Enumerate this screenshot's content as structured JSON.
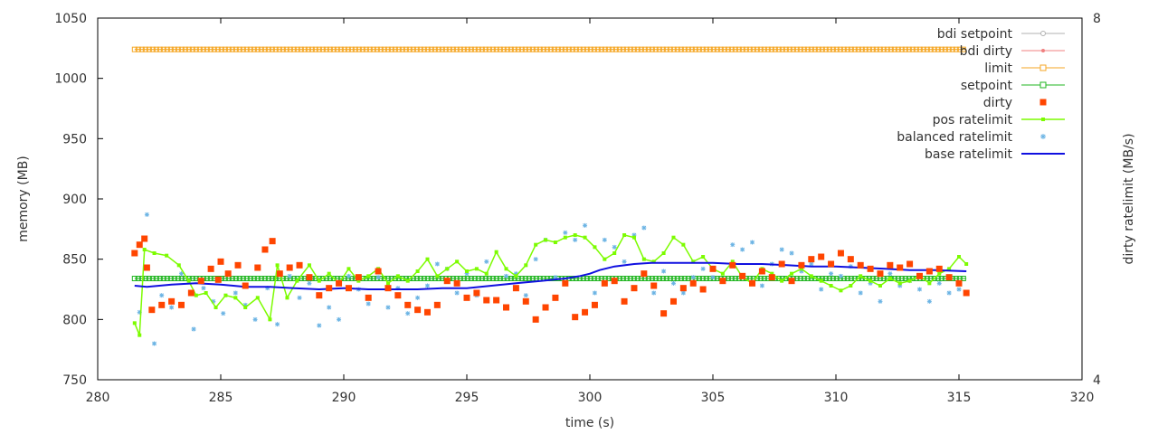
{
  "chart_data": {
    "type": "scatter",
    "title": "",
    "xlabel": "time (s)",
    "ylabel": "memory (MB)",
    "y2label": "dirty ratelimit (MB/s)",
    "xlim": [
      280,
      320
    ],
    "ylim": [
      750,
      1050
    ],
    "y2lim": [
      4,
      8
    ],
    "xticks": [
      "280",
      "285",
      "290",
      "295",
      "300",
      "305",
      "310",
      "315",
      "320"
    ],
    "yticks": [
      "750",
      "800",
      "850",
      "900",
      "950",
      "1000",
      "1050"
    ],
    "y2ticks": [
      "4",
      "8"
    ],
    "grid": false,
    "legend_position": "top-right",
    "series": [
      {
        "name": "bdi setpoint",
        "color": "#b0b0b0",
        "style": "line-circle"
      },
      {
        "name": "bdi dirty",
        "color": "#f08080",
        "style": "line-dot"
      },
      {
        "name": "limit",
        "color": "#f5a623",
        "style": "line-square",
        "value": 1024,
        "x_start": 281.5,
        "x_end": 315.3
      },
      {
        "name": "setpoint",
        "color": "#1fb51f",
        "style": "line-square",
        "value": 834,
        "x_start": 281.5,
        "x_end": 315.3
      },
      {
        "name": "dirty",
        "color": "#ff4500",
        "style": "points-square",
        "points": [
          [
            281.5,
            855
          ],
          [
            281.7,
            862
          ],
          [
            281.9,
            867
          ],
          [
            282.0,
            843
          ],
          [
            282.2,
            808
          ],
          [
            282.6,
            812
          ],
          [
            283.0,
            815
          ],
          [
            283.4,
            812
          ],
          [
            283.8,
            822
          ],
          [
            284.2,
            832
          ],
          [
            284.6,
            842
          ],
          [
            285.0,
            848
          ],
          [
            284.9,
            833
          ],
          [
            285.3,
            838
          ],
          [
            285.7,
            845
          ],
          [
            286.0,
            828
          ],
          [
            286.5,
            843
          ],
          [
            286.8,
            858
          ],
          [
            287.1,
            865
          ],
          [
            287.4,
            838
          ],
          [
            287.8,
            843
          ],
          [
            288.2,
            845
          ],
          [
            288.6,
            835
          ],
          [
            289.0,
            820
          ],
          [
            289.4,
            826
          ],
          [
            289.8,
            830
          ],
          [
            290.2,
            826
          ],
          [
            290.6,
            835
          ],
          [
            291.0,
            818
          ],
          [
            291.4,
            840
          ],
          [
            291.8,
            826
          ],
          [
            292.2,
            820
          ],
          [
            292.6,
            812
          ],
          [
            293.0,
            808
          ],
          [
            293.4,
            806
          ],
          [
            293.8,
            812
          ],
          [
            294.2,
            832
          ],
          [
            294.6,
            830
          ],
          [
            295.0,
            818
          ],
          [
            295.4,
            822
          ],
          [
            295.8,
            816
          ],
          [
            296.2,
            816
          ],
          [
            296.6,
            810
          ],
          [
            297.0,
            826
          ],
          [
            297.4,
            815
          ],
          [
            297.8,
            800
          ],
          [
            298.2,
            810
          ],
          [
            298.6,
            818
          ],
          [
            299.0,
            830
          ],
          [
            299.4,
            802
          ],
          [
            299.8,
            806
          ],
          [
            300.2,
            812
          ],
          [
            300.6,
            830
          ],
          [
            301.0,
            832
          ],
          [
            301.4,
            815
          ],
          [
            301.8,
            826
          ],
          [
            302.2,
            838
          ],
          [
            302.6,
            828
          ],
          [
            303.0,
            805
          ],
          [
            303.4,
            815
          ],
          [
            303.8,
            826
          ],
          [
            304.2,
            830
          ],
          [
            304.6,
            825
          ],
          [
            305.0,
            842
          ],
          [
            305.4,
            832
          ],
          [
            305.8,
            845
          ],
          [
            306.2,
            836
          ],
          [
            306.6,
            830
          ],
          [
            307.0,
            840
          ],
          [
            307.4,
            835
          ],
          [
            307.8,
            846
          ],
          [
            308.2,
            832
          ],
          [
            308.6,
            845
          ],
          [
            309.0,
            850
          ],
          [
            309.4,
            852
          ],
          [
            309.8,
            846
          ],
          [
            310.2,
            855
          ],
          [
            310.6,
            850
          ],
          [
            311.0,
            845
          ],
          [
            311.4,
            842
          ],
          [
            311.8,
            838
          ],
          [
            312.2,
            845
          ],
          [
            312.6,
            843
          ],
          [
            313.0,
            846
          ],
          [
            313.4,
            836
          ],
          [
            313.8,
            840
          ],
          [
            314.2,
            842
          ],
          [
            314.6,
            835
          ],
          [
            315.0,
            830
          ],
          [
            315.3,
            822
          ]
        ]
      },
      {
        "name": "pos ratelimit",
        "color": "#7cfc00",
        "style": "line-point",
        "points": [
          [
            281.5,
            797
          ],
          [
            281.7,
            787
          ],
          [
            281.9,
            858
          ],
          [
            282.3,
            855
          ],
          [
            282.8,
            853
          ],
          [
            283.3,
            845
          ],
          [
            283.7,
            832
          ],
          [
            284.0,
            820
          ],
          [
            284.4,
            822
          ],
          [
            284.8,
            810
          ],
          [
            285.2,
            820
          ],
          [
            285.6,
            818
          ],
          [
            286.0,
            810
          ],
          [
            286.5,
            818
          ],
          [
            287.0,
            800
          ],
          [
            287.3,
            845
          ],
          [
            287.7,
            818
          ],
          [
            288.1,
            832
          ],
          [
            288.6,
            845
          ],
          [
            289.0,
            832
          ],
          [
            289.4,
            838
          ],
          [
            289.8,
            830
          ],
          [
            290.2,
            842
          ],
          [
            290.6,
            832
          ],
          [
            291.0,
            836
          ],
          [
            291.4,
            842
          ],
          [
            291.8,
            830
          ],
          [
            292.2,
            836
          ],
          [
            292.6,
            832
          ],
          [
            293.0,
            840
          ],
          [
            293.4,
            850
          ],
          [
            293.8,
            836
          ],
          [
            294.2,
            842
          ],
          [
            294.6,
            848
          ],
          [
            295.0,
            840
          ],
          [
            295.4,
            842
          ],
          [
            295.8,
            838
          ],
          [
            296.2,
            856
          ],
          [
            296.6,
            842
          ],
          [
            297.0,
            836
          ],
          [
            297.4,
            845
          ],
          [
            297.8,
            862
          ],
          [
            298.2,
            866
          ],
          [
            298.6,
            864
          ],
          [
            299.0,
            868
          ],
          [
            299.4,
            870
          ],
          [
            299.8,
            868
          ],
          [
            300.2,
            860
          ],
          [
            300.6,
            850
          ],
          [
            301.0,
            855
          ],
          [
            301.4,
            870
          ],
          [
            301.8,
            868
          ],
          [
            302.2,
            850
          ],
          [
            302.6,
            848
          ],
          [
            303.0,
            855
          ],
          [
            303.4,
            868
          ],
          [
            303.8,
            862
          ],
          [
            304.2,
            848
          ],
          [
            304.6,
            852
          ],
          [
            305.0,
            842
          ],
          [
            305.4,
            838
          ],
          [
            305.8,
            848
          ],
          [
            306.2,
            835
          ],
          [
            306.6,
            830
          ],
          [
            307.0,
            842
          ],
          [
            307.4,
            838
          ],
          [
            307.8,
            832
          ],
          [
            308.2,
            838
          ],
          [
            308.6,
            842
          ],
          [
            309.0,
            836
          ],
          [
            309.4,
            832
          ],
          [
            309.8,
            828
          ],
          [
            310.2,
            824
          ],
          [
            310.6,
            828
          ],
          [
            311.0,
            836
          ],
          [
            311.4,
            832
          ],
          [
            311.8,
            828
          ],
          [
            312.2,
            834
          ],
          [
            312.6,
            830
          ],
          [
            313.0,
            832
          ],
          [
            313.4,
            836
          ],
          [
            313.8,
            830
          ],
          [
            314.2,
            838
          ],
          [
            314.6,
            842
          ],
          [
            315.0,
            852
          ],
          [
            315.3,
            846
          ]
        ]
      },
      {
        "name": "balanced ratelimit",
        "color": "#6cb4e4",
        "style": "points-star",
        "points": [
          [
            281.7,
            806
          ],
          [
            282.0,
            887
          ],
          [
            282.3,
            780
          ],
          [
            282.6,
            820
          ],
          [
            283.0,
            810
          ],
          [
            283.4,
            838
          ],
          [
            283.9,
            792
          ],
          [
            284.3,
            826
          ],
          [
            284.7,
            815
          ],
          [
            285.1,
            805
          ],
          [
            285.6,
            822
          ],
          [
            286.0,
            812
          ],
          [
            286.4,
            800
          ],
          [
            286.9,
            826
          ],
          [
            287.3,
            796
          ],
          [
            287.8,
            836
          ],
          [
            288.2,
            818
          ],
          [
            288.6,
            830
          ],
          [
            289.0,
            795
          ],
          [
            289.4,
            810
          ],
          [
            289.8,
            800
          ],
          [
            290.2,
            836
          ],
          [
            290.6,
            825
          ],
          [
            291.0,
            813
          ],
          [
            291.4,
            835
          ],
          [
            291.8,
            810
          ],
          [
            292.2,
            826
          ],
          [
            292.6,
            805
          ],
          [
            293.0,
            818
          ],
          [
            293.4,
            828
          ],
          [
            293.8,
            846
          ],
          [
            294.2,
            842
          ],
          [
            294.6,
            822
          ],
          [
            295.0,
            838
          ],
          [
            295.4,
            820
          ],
          [
            295.8,
            848
          ],
          [
            296.2,
            816
          ],
          [
            296.6,
            836
          ],
          [
            297.0,
            838
          ],
          [
            297.4,
            820
          ],
          [
            297.8,
            850
          ],
          [
            298.2,
            866
          ],
          [
            298.6,
            835
          ],
          [
            299.0,
            872
          ],
          [
            299.4,
            866
          ],
          [
            299.8,
            878
          ],
          [
            300.2,
            822
          ],
          [
            300.6,
            866
          ],
          [
            301.0,
            860
          ],
          [
            301.4,
            848
          ],
          [
            301.8,
            870
          ],
          [
            302.2,
            876
          ],
          [
            302.6,
            822
          ],
          [
            303.0,
            840
          ],
          [
            303.4,
            830
          ],
          [
            303.8,
            822
          ],
          [
            304.2,
            835
          ],
          [
            304.6,
            842
          ],
          [
            305.0,
            835
          ],
          [
            305.4,
            832
          ],
          [
            305.8,
            862
          ],
          [
            306.2,
            858
          ],
          [
            306.6,
            864
          ],
          [
            307.0,
            828
          ],
          [
            307.4,
            846
          ],
          [
            307.8,
            858
          ],
          [
            308.2,
            855
          ],
          [
            308.6,
            840
          ],
          [
            309.0,
            846
          ],
          [
            309.4,
            825
          ],
          [
            309.8,
            838
          ],
          [
            310.2,
            836
          ],
          [
            310.6,
            844
          ],
          [
            311.0,
            822
          ],
          [
            311.4,
            830
          ],
          [
            311.8,
            815
          ],
          [
            312.2,
            838
          ],
          [
            312.6,
            828
          ],
          [
            313.0,
            832
          ],
          [
            313.4,
            825
          ],
          [
            313.8,
            815
          ],
          [
            314.2,
            830
          ],
          [
            314.6,
            822
          ],
          [
            315.0,
            825
          ]
        ]
      },
      {
        "name": "base ratelimit",
        "color": "#1010e0",
        "style": "line",
        "points": [
          [
            281.5,
            828
          ],
          [
            282.0,
            827
          ],
          [
            283.0,
            829
          ],
          [
            284.0,
            830
          ],
          [
            285.0,
            829
          ],
          [
            286.0,
            827
          ],
          [
            287.0,
            827
          ],
          [
            288.0,
            826
          ],
          [
            289.0,
            825
          ],
          [
            290.0,
            826
          ],
          [
            291.0,
            825
          ],
          [
            292.0,
            825
          ],
          [
            293.0,
            825
          ],
          [
            294.0,
            826
          ],
          [
            295.0,
            826
          ],
          [
            296.0,
            828
          ],
          [
            297.0,
            830
          ],
          [
            298.0,
            832
          ],
          [
            299.0,
            834
          ],
          [
            299.6,
            836
          ],
          [
            300.0,
            838
          ],
          [
            300.4,
            841
          ],
          [
            301.0,
            844
          ],
          [
            301.8,
            846
          ],
          [
            302.5,
            847
          ],
          [
            303.5,
            847
          ],
          [
            305.0,
            847
          ],
          [
            306.0,
            846
          ],
          [
            307.0,
            846
          ],
          [
            308.0,
            845
          ],
          [
            309.0,
            844
          ],
          [
            310.0,
            844
          ],
          [
            311.0,
            843
          ],
          [
            312.0,
            842
          ],
          [
            313.0,
            841
          ],
          [
            314.0,
            841
          ],
          [
            315.3,
            840
          ]
        ]
      }
    ]
  }
}
